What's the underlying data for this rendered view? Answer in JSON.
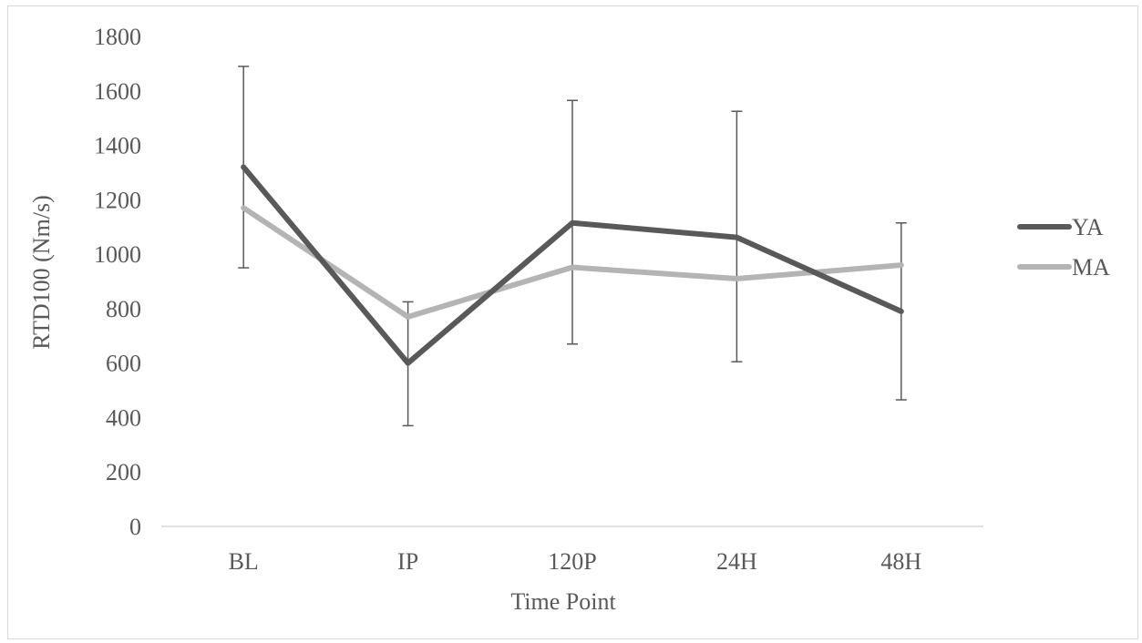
{
  "chart_data": {
    "type": "line",
    "title": "",
    "xlabel": "Time Point",
    "ylabel": "RTD100 (Nm/s)",
    "categories": [
      "BL",
      "IP",
      "120P",
      "24H",
      "48H"
    ],
    "ylim": [
      0,
      1800
    ],
    "yticks": [
      0,
      200,
      400,
      600,
      800,
      1000,
      1200,
      1400,
      1600,
      1800
    ],
    "grid": false,
    "legend_position": "right",
    "series": [
      {
        "name": "YA",
        "color": "#595959",
        "values": [
          1320,
          600,
          1115,
          1062,
          790
        ],
        "error_low": [
          950,
          370,
          670,
          605,
          465
        ],
        "error_high": [
          1690,
          825,
          1565,
          1525,
          1115
        ]
      },
      {
        "name": "MA",
        "color": "#b4b4b4",
        "values": [
          1170,
          770,
          952,
          910,
          960
        ]
      }
    ]
  }
}
